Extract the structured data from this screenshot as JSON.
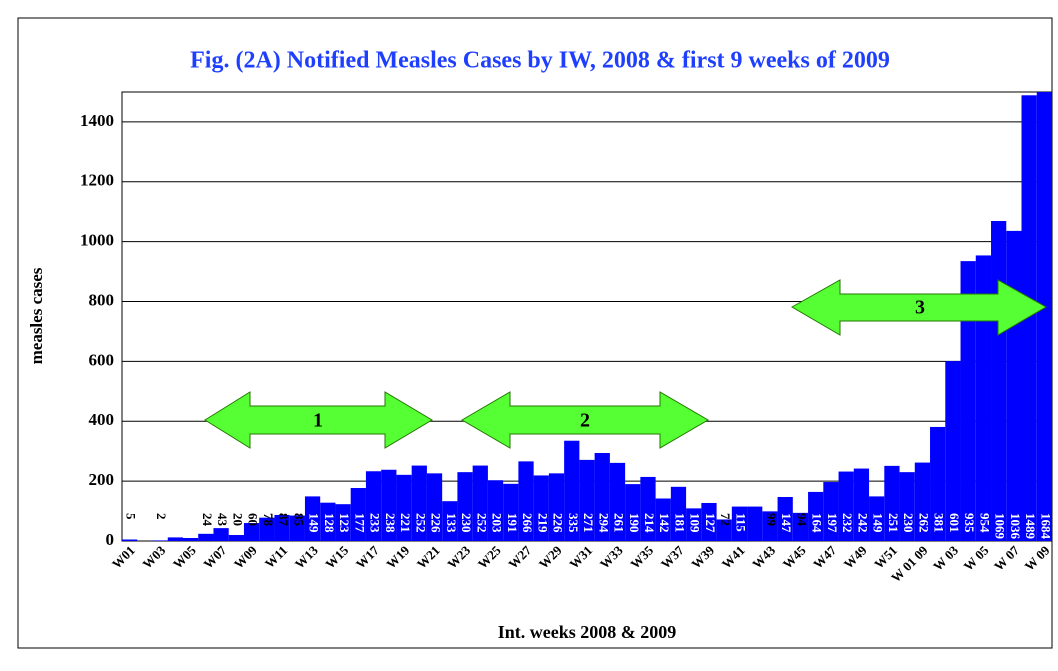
{
  "chart_data": {
    "type": "bar",
    "title": "Fig. (2A) Notified Measles Cases by IW, 2008 & first 9 weeks of 2009",
    "x_label": "Int. weeks 2008 & 2009",
    "y_label": "measles cases",
    "categories": [
      "W01",
      null,
      "W03",
      null,
      "W05",
      null,
      "W07",
      null,
      "W09",
      null,
      "W11",
      null,
      "W13",
      null,
      "W15",
      null,
      "W17",
      null,
      "W19",
      null,
      "W21",
      null,
      "W23",
      null,
      "W25",
      null,
      "W27",
      null,
      "W29",
      null,
      "W31",
      null,
      "W33",
      null,
      "W35",
      null,
      "W37",
      null,
      "W39",
      null,
      "W41",
      null,
      "W43",
      null,
      "W45",
      null,
      "W47",
      null,
      "W49",
      null,
      "W51",
      null,
      "W 01 09",
      null,
      "W 03",
      null,
      "W 05",
      null,
      "W 07",
      null,
      "W 09"
    ],
    "values": [
      5,
      0,
      2,
      12,
      10,
      24,
      43,
      20,
      60,
      78,
      87,
      85,
      149,
      128,
      123,
      177,
      233,
      238,
      221,
      252,
      226,
      133,
      230,
      252,
      203,
      191,
      266,
      219,
      226,
      335,
      271,
      294,
      261,
      190,
      214,
      142,
      181,
      109,
      127,
      72,
      115,
      115,
      99,
      147,
      94,
      164,
      197,
      232,
      242,
      149,
      251,
      230,
      262,
      381,
      601,
      935,
      954,
      1069,
      1036,
      1489,
      1684
    ],
    "value_labels": [
      "5",
      null,
      "2",
      null,
      null,
      "24",
      "43",
      "20",
      "60",
      "78",
      "87",
      "85",
      "149",
      "128",
      "123",
      "177",
      "233",
      "238",
      "221",
      "252",
      "226",
      "133",
      "230",
      "252",
      "203",
      "191",
      "266",
      "219",
      "226",
      "335",
      "271",
      "294",
      "261",
      "190",
      "214",
      "142",
      "181",
      "109",
      "127",
      "72",
      "115",
      null,
      "99",
      "147",
      "94",
      "164",
      "197",
      "232",
      "242",
      "149",
      "251",
      "230",
      "262",
      "381",
      "601",
      "935",
      "954",
      "1069",
      "1036",
      "1489",
      "1684"
    ],
    "color": "#0000ff",
    "ylim": [
      0,
      1500
    ],
    "yticks": [
      0,
      200,
      400,
      600,
      800,
      1000,
      1200,
      1400
    ],
    "grid": true,
    "annotations": [
      {
        "text": "1"
      },
      {
        "text": "2"
      },
      {
        "text": "3"
      }
    ]
  }
}
